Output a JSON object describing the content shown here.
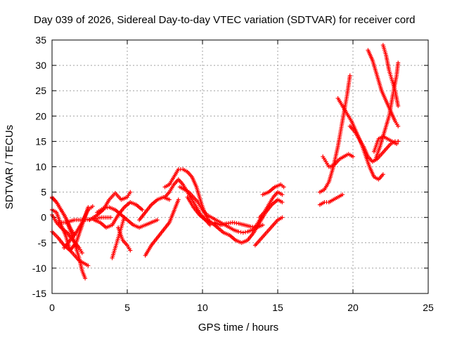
{
  "chart_data": {
    "type": "scatter",
    "title": "Day 039 of 2026, Sidereal Day-to-day VTEC variation (SDTVAR) for receiver cord",
    "xlabel": "GPS time / hours",
    "ylabel": "SDTVAR / TECUs",
    "xlim": [
      0,
      25
    ],
    "ylim": [
      -15,
      35
    ],
    "xticks": [
      "0",
      "5",
      "10",
      "15",
      "20",
      "25"
    ],
    "yticks": [
      "-15",
      "-10",
      "-5",
      "0",
      "5",
      "10",
      "15",
      "20",
      "25",
      "30",
      "35"
    ],
    "grid": true,
    "legend": "none",
    "marker": "plus",
    "color": "#ff0000",
    "series": [
      {
        "x": [
          0.0,
          0.3,
          0.6,
          0.9,
          1.2,
          1.5,
          1.8,
          2.0,
          2.2
        ],
        "y": [
          3.8,
          3.0,
          1.5,
          0.0,
          -2.5,
          -5.0,
          -8.0,
          -10.5,
          -12.0
        ]
      },
      {
        "x": [
          0.0,
          0.3,
          0.6,
          0.9,
          1.2,
          1.5,
          1.8,
          2.1,
          2.4
        ],
        "y": [
          1.5,
          1.0,
          -1.5,
          -3.5,
          -6.5,
          -7.5,
          -8.5,
          -9.0,
          -9.5
        ]
      },
      {
        "x": [
          0.0,
          0.4,
          0.8,
          1.2,
          1.6,
          2.0,
          2.4
        ],
        "y": [
          -2.8,
          -4.0,
          -5.5,
          -6.5,
          -5.0,
          -1.5,
          2.0
        ]
      },
      {
        "x": [
          0.0,
          0.3,
          0.6,
          1.0,
          1.4,
          1.8,
          2.0
        ],
        "y": [
          0.5,
          -1.0,
          -2.0,
          -3.0,
          -4.5,
          -6.0,
          -7.0
        ]
      },
      {
        "x": [
          0.0,
          0.3,
          0.6,
          0.9,
          1.2,
          1.5
        ],
        "y": [
          4.0,
          3.0,
          1.5,
          0.0,
          -2.0,
          -3.5
        ]
      },
      {
        "x": [
          0.8,
          1.2,
          1.6,
          2.0,
          2.4,
          2.7
        ],
        "y": [
          -6.0,
          -4.5,
          -3.0,
          -1.0,
          1.5,
          2.2
        ]
      },
      {
        "x": [
          0.3,
          0.9,
          1.5,
          2.1,
          2.7,
          3.3,
          3.9
        ],
        "y": [
          -1.0,
          -1.0,
          -0.5,
          -0.5,
          -0.3,
          0.0,
          0.0
        ]
      },
      {
        "x": [
          2.5,
          3.0,
          3.4,
          3.8,
          4.2,
          4.6,
          5.0,
          5.2
        ],
        "y": [
          -0.5,
          0.5,
          1.5,
          3.5,
          4.8,
          3.5,
          4.0,
          5.0
        ]
      },
      {
        "x": [
          2.8,
          3.2,
          3.6,
          4.0,
          4.4,
          4.8,
          5.2,
          5.6,
          6.0
        ],
        "y": [
          -0.5,
          -1.0,
          -2.0,
          -1.5,
          0.5,
          2.0,
          3.0,
          2.5,
          1.5
        ]
      },
      {
        "x": [
          3.0,
          3.4,
          3.8,
          4.2,
          4.6,
          5.0,
          5.4,
          5.8,
          6.2,
          6.6,
          7.0
        ],
        "y": [
          1.0,
          1.8,
          2.0,
          1.5,
          0.5,
          -0.5,
          -1.5,
          -2.0,
          -1.5,
          -1.0,
          -0.5
        ]
      },
      {
        "x": [
          4.0,
          4.2,
          4.4,
          4.6,
          4.8
        ],
        "y": [
          -8.0,
          -6.0,
          -4.0,
          -2.0,
          0.0
        ]
      },
      {
        "x": [
          4.4,
          4.7,
          5.0,
          5.2
        ],
        "y": [
          -2.0,
          -4.5,
          -5.5,
          -6.5
        ]
      },
      {
        "x": [
          6.2,
          6.6,
          7.0,
          7.4,
          7.8,
          8.0,
          8.2,
          8.4
        ],
        "y": [
          -7.5,
          -5.5,
          -4.0,
          -2.5,
          -1.0,
          0.5,
          2.0,
          3.5
        ]
      },
      {
        "x": [
          5.8,
          6.2,
          6.6,
          7.0,
          7.4,
          7.8
        ],
        "y": [
          -0.5,
          1.0,
          2.5,
          3.5,
          4.0,
          3.5
        ]
      },
      {
        "x": [
          7.5,
          7.8,
          8.1,
          8.4,
          8.7,
          9.0,
          9.3,
          9.6,
          9.9,
          10.2,
          10.5
        ],
        "y": [
          6.0,
          6.5,
          8.0,
          9.5,
          9.5,
          9.0,
          8.0,
          6.0,
          3.0,
          0.5,
          -1.0
        ]
      },
      {
        "x": [
          7.5,
          7.8,
          8.1,
          8.4,
          8.7,
          9.0,
          9.3,
          9.6,
          9.9,
          10.2,
          10.5
        ],
        "y": [
          4.0,
          5.0,
          6.5,
          7.5,
          6.5,
          5.0,
          3.5,
          2.0,
          0.5,
          -0.5,
          -1.5
        ]
      },
      {
        "x": [
          8.5,
          8.8,
          9.1,
          9.4,
          9.7,
          10.0,
          10.3,
          10.6,
          10.9,
          11.2,
          11.5,
          11.8,
          12.1,
          12.4,
          12.7,
          13.0,
          13.3,
          13.6,
          13.9
        ],
        "y": [
          6.0,
          5.5,
          5.0,
          4.0,
          3.0,
          1.5,
          0.5,
          0.0,
          -0.5,
          -1.0,
          -1.5,
          -2.0,
          -2.5,
          -2.8,
          -3.0,
          -2.8,
          -2.5,
          -1.5,
          0.0
        ]
      },
      {
        "x": [
          9.0,
          9.4,
          9.8,
          10.2,
          10.6,
          11.0,
          11.4,
          11.8,
          12.2,
          12.6,
          13.0,
          13.4,
          13.8,
          14.2,
          14.6,
          15.0,
          15.3
        ],
        "y": [
          4.0,
          2.0,
          0.5,
          -0.5,
          -1.0,
          -2.0,
          -3.0,
          -3.5,
          -4.5,
          -5.0,
          -4.5,
          -3.0,
          -1.0,
          1.0,
          2.5,
          3.5,
          3.0
        ]
      },
      {
        "x": [
          10.8,
          11.2,
          11.6,
          12.0,
          12.4,
          12.8,
          13.2,
          13.6,
          14.0
        ],
        "y": [
          -1.0,
          -1.5,
          -1.2,
          -1.0,
          -1.2,
          -1.5,
          -1.8,
          -2.0,
          -1.5
        ]
      },
      {
        "x": [
          13.5,
          13.8,
          14.1,
          14.4,
          14.7,
          15.0,
          15.3
        ],
        "y": [
          -5.5,
          -4.5,
          -3.5,
          -2.5,
          -1.5,
          -0.5,
          0.0
        ]
      },
      {
        "x": [
          13.8,
          14.1,
          14.4,
          14.7,
          15.0,
          15.3
        ],
        "y": [
          0.0,
          1.0,
          2.5,
          4.0,
          5.0,
          4.5
        ]
      },
      {
        "x": [
          14.0,
          14.4,
          14.8,
          15.2,
          15.4
        ],
        "y": [
          4.5,
          5.0,
          6.0,
          6.5,
          6.0
        ]
      },
      {
        "x": [
          17.8,
          18.1,
          18.4,
          18.7,
          19.0,
          19.3,
          19.6,
          19.8
        ],
        "y": [
          5.0,
          5.5,
          7.0,
          10.0,
          14.0,
          19.0,
          24.0,
          28.0
        ]
      },
      {
        "x": [
          17.8,
          18.1,
          18.4,
          18.7,
          19.0,
          19.3
        ],
        "y": [
          2.5,
          3.0,
          3.0,
          3.5,
          4.0,
          4.5
        ]
      },
      {
        "x": [
          18.0,
          18.2,
          18.4
        ],
        "y": [
          12.0,
          11.0,
          10.0
        ]
      },
      {
        "x": [
          18.5,
          18.8,
          19.1,
          19.4,
          19.7,
          20.0
        ],
        "y": [
          10.0,
          10.5,
          11.5,
          12.0,
          12.5,
          12.0
        ]
      },
      {
        "x": [
          19.0,
          19.3,
          19.6,
          19.9,
          20.2,
          20.5,
          20.8,
          21.1,
          21.4,
          21.7,
          22.0
        ],
        "y": [
          23.5,
          22.0,
          20.5,
          19.0,
          17.0,
          15.0,
          12.5,
          10.0,
          8.0,
          7.5,
          8.5
        ]
      },
      {
        "x": [
          19.8,
          20.1,
          20.4,
          20.7,
          21.0,
          21.3,
          21.6,
          21.9,
          22.2,
          22.5,
          22.8,
          23.0
        ],
        "y": [
          18.0,
          17.0,
          15.5,
          14.0,
          12.0,
          11.0,
          11.5,
          12.5,
          13.5,
          14.5,
          15.0,
          15.0
        ]
      },
      {
        "x": [
          21.5,
          21.8,
          22.1,
          22.4,
          22.7,
          22.9,
          23.0
        ],
        "y": [
          11.5,
          14.0,
          17.0,
          20.0,
          25.0,
          28.0,
          30.5
        ]
      },
      {
        "x": [
          21.4,
          21.7,
          22.0,
          22.3,
          22.6,
          22.9,
          23.0
        ],
        "y": [
          13.0,
          15.5,
          16.0,
          15.5,
          15.0,
          14.5,
          15.0
        ]
      },
      {
        "x": [
          22.0,
          22.2,
          22.4,
          22.6,
          22.8,
          23.0
        ],
        "y": [
          34.0,
          32.0,
          29.0,
          27.0,
          25.0,
          22.0
        ]
      },
      {
        "x": [
          21.0,
          21.3,
          21.6,
          21.9,
          22.2,
          22.5,
          22.8,
          23.0
        ],
        "y": [
          33.0,
          31.0,
          28.0,
          25.0,
          23.0,
          21.0,
          19.0,
          18.0
        ]
      }
    ]
  }
}
